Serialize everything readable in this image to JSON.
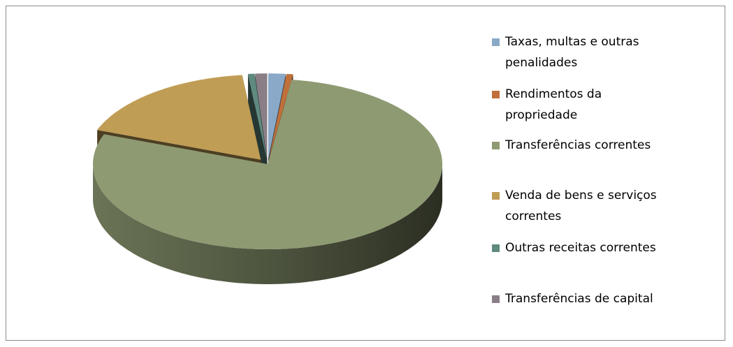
{
  "chart_data": {
    "type": "pie3d",
    "categories": [
      "Taxas, multas e outras penalidades",
      "Rendimentos da propriedade",
      "Transferências correntes",
      "Venda de bens e serviços correntes",
      "Outras receitas correntes",
      "Transferências de capital"
    ],
    "values": [
      1.6,
      0.6,
      78.5,
      17.6,
      0.6,
      1.1
    ],
    "colors": [
      "#8aa9c8",
      "#c0703a",
      "#8e9a72",
      "#c09d55",
      "#5f8a80",
      "#8a7f86"
    ],
    "legend": "right"
  }
}
